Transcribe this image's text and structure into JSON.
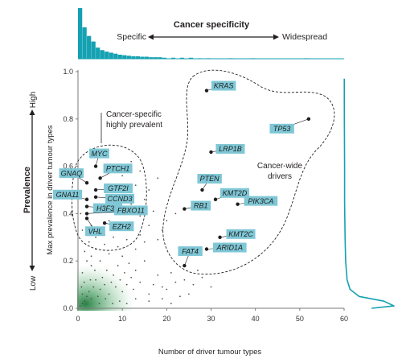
{
  "chart_data": {
    "type": "scatter",
    "xlabel": "Number of driver tumour types",
    "ylabel": "Max prevalence in driver tumour types",
    "xlim": [
      0,
      60
    ],
    "ylim": [
      0,
      1.0
    ],
    "xticks": [
      "0",
      "10",
      "20",
      "30",
      "40",
      "50",
      "60"
    ],
    "yticks": [
      "0.0",
      "0.2",
      "0.4",
      "0.6",
      "0.8",
      "1.0"
    ],
    "grid": false,
    "top_header": {
      "title": "Cancer specificity",
      "left": "Specific",
      "right": "Widespread"
    },
    "left_header": {
      "title": "Prevalence",
      "high": "High",
      "low": "Low"
    },
    "group_labels": [
      {
        "text_line1": "Cancer-specific",
        "text_line2": "highly prevalent"
      },
      {
        "text_line1": "Cancer-wide",
        "text_line2": "drivers"
      }
    ],
    "labeled_points": [
      {
        "gene": "KRAS",
        "x": 29,
        "y": 0.92
      },
      {
        "gene": "TP53",
        "x": 52,
        "y": 0.8
      },
      {
        "gene": "LRP1B",
        "x": 30,
        "y": 0.66
      },
      {
        "gene": "PTEN",
        "x": 28,
        "y": 0.5
      },
      {
        "gene": "KMT2D",
        "x": 31,
        "y": 0.46
      },
      {
        "gene": "PIK3CA",
        "x": 36,
        "y": 0.44
      },
      {
        "gene": "RB1",
        "x": 24,
        "y": 0.42
      },
      {
        "gene": "KMT2C",
        "x": 32,
        "y": 0.3
      },
      {
        "gene": "ARID1A",
        "x": 29,
        "y": 0.25
      },
      {
        "gene": "FAT4",
        "x": 24,
        "y": 0.18
      },
      {
        "gene": "MYC",
        "x": 4,
        "y": 0.6
      },
      {
        "gene": "PTCH1",
        "x": 5,
        "y": 0.55
      },
      {
        "gene": "GNAQ",
        "x": 2,
        "y": 0.53
      },
      {
        "gene": "GTF2I",
        "x": 4,
        "y": 0.5
      },
      {
        "gene": "GNA11",
        "x": 2,
        "y": 0.46
      },
      {
        "gene": "CCND3",
        "x": 4,
        "y": 0.47
      },
      {
        "gene": "H3F3A",
        "x": 2,
        "y": 0.43
      },
      {
        "gene": "FBXO11",
        "x": 2,
        "y": 0.4
      },
      {
        "gene": "EZH2",
        "x": 6,
        "y": 0.36
      },
      {
        "gene": "VHL",
        "x": 2,
        "y": 0.38
      }
    ],
    "background_points": [
      [
        0.5,
        0.01
      ],
      [
        1,
        0.02
      ],
      [
        1.5,
        0.03
      ],
      [
        2,
        0.05
      ],
      [
        1,
        0.06
      ],
      [
        0.8,
        0.09
      ],
      [
        1.4,
        0.11
      ],
      [
        2.5,
        0.07
      ],
      [
        3,
        0.04
      ],
      [
        3.5,
        0.09
      ],
      [
        4,
        0.12
      ],
      [
        4.5,
        0.05
      ],
      [
        5,
        0.08
      ],
      [
        5.5,
        0.13
      ],
      [
        6,
        0.1
      ],
      [
        6.5,
        0.16
      ],
      [
        7,
        0.06
      ],
      [
        7.5,
        0.11
      ],
      [
        8,
        0.14
      ],
      [
        8.5,
        0.09
      ],
      [
        9,
        0.18
      ],
      [
        9.5,
        0.12
      ],
      [
        10,
        0.07
      ],
      [
        10.5,
        0.15
      ],
      [
        11,
        0.1
      ],
      [
        11.5,
        0.19
      ],
      [
        12,
        0.13
      ],
      [
        12.5,
        0.08
      ],
      [
        13,
        0.16
      ],
      [
        14,
        0.11
      ],
      [
        15,
        0.2
      ],
      [
        16,
        0.06
      ],
      [
        17,
        0.1
      ],
      [
        18,
        0.14
      ],
      [
        19,
        0.09
      ],
      [
        20,
        0.08
      ],
      [
        21,
        0.15
      ],
      [
        22,
        0.11
      ],
      [
        23,
        0.05
      ],
      [
        24,
        0.12
      ],
      [
        1,
        0.15
      ],
      [
        2,
        0.2
      ],
      [
        3,
        0.18
      ],
      [
        1.5,
        0.24
      ],
      [
        2.5,
        0.28
      ],
      [
        3,
        0.22
      ],
      [
        4,
        0.25
      ],
      [
        5,
        0.2
      ],
      [
        6,
        0.27
      ],
      [
        7,
        0.23
      ],
      [
        8,
        0.3
      ],
      [
        9,
        0.26
      ],
      [
        10,
        0.22
      ],
      [
        11,
        0.29
      ],
      [
        12,
        0.33
      ],
      [
        13,
        0.25
      ],
      [
        14,
        0.31
      ],
      [
        15,
        0.28
      ],
      [
        16,
        0.35
      ],
      [
        18,
        0.29
      ],
      [
        20,
        0.37
      ],
      [
        22,
        0.4
      ],
      [
        19,
        0.33
      ],
      [
        17,
        0.41
      ],
      [
        9,
        0.35
      ],
      [
        10,
        0.4
      ],
      [
        12,
        0.44
      ],
      [
        14,
        0.39
      ],
      [
        8,
        0.44
      ],
      [
        11,
        0.48
      ],
      [
        13,
        0.52
      ],
      [
        15,
        0.46
      ],
      [
        16,
        0.5
      ],
      [
        18,
        0.55
      ],
      [
        14,
        0.58
      ],
      [
        12,
        0.62
      ],
      [
        10,
        0.56
      ],
      [
        6,
        0.31
      ],
      [
        7,
        0.37
      ],
      [
        5,
        0.33
      ],
      [
        4,
        0.3
      ],
      [
        3,
        0.35
      ],
      [
        1,
        0.33
      ],
      [
        0.6,
        0.4
      ],
      [
        2.8,
        0.12
      ],
      [
        3.8,
        0.16
      ],
      [
        4.8,
        0.02
      ],
      [
        6.2,
        0.04
      ],
      [
        7.8,
        0.02
      ],
      [
        9.4,
        0.03
      ],
      [
        11,
        0.02
      ],
      [
        13,
        0.04
      ],
      [
        16,
        0.03
      ],
      [
        19,
        0.04
      ],
      [
        21,
        0.02
      ],
      [
        25,
        0.06
      ],
      [
        26,
        0.1
      ],
      [
        27,
        0.16
      ],
      [
        28,
        0.13
      ],
      [
        30,
        0.09
      ]
    ],
    "density_x": [
      {
        "bin": 1,
        "value": 1.0
      },
      {
        "bin": 2,
        "value": 0.62
      },
      {
        "bin": 3,
        "value": 0.45
      },
      {
        "bin": 4,
        "value": 0.34
      },
      {
        "bin": 5,
        "value": 0.22
      },
      {
        "bin": 6,
        "value": 0.17
      },
      {
        "bin": 7,
        "value": 0.14
      },
      {
        "bin": 8,
        "value": 0.12
      },
      {
        "bin": 9,
        "value": 0.1
      },
      {
        "bin": 10,
        "value": 0.08
      },
      {
        "bin": 11,
        "value": 0.07
      },
      {
        "bin": 12,
        "value": 0.06
      },
      {
        "bin": 13,
        "value": 0.05
      },
      {
        "bin": 14,
        "value": 0.05
      },
      {
        "bin": 15,
        "value": 0.04
      },
      {
        "bin": 16,
        "value": 0.04
      },
      {
        "bin": 17,
        "value": 0.03
      },
      {
        "bin": 18,
        "value": 0.03
      },
      {
        "bin": 19,
        "value": 0.03
      },
      {
        "bin": 20,
        "value": 0.02
      },
      {
        "bin": 22,
        "value": 0.02
      },
      {
        "bin": 24,
        "value": 0.02
      },
      {
        "bin": 26,
        "value": 0.02
      },
      {
        "bin": 28,
        "value": 0.01
      },
      {
        "bin": 30,
        "value": 0.01
      },
      {
        "bin": 35,
        "value": 0.01
      },
      {
        "bin": 40,
        "value": 0.01
      },
      {
        "bin": 52,
        "value": 0.01
      }
    ],
    "density_y": [
      {
        "y": 0.0,
        "value": 0.55
      },
      {
        "y": 0.01,
        "value": 1.0
      },
      {
        "y": 0.03,
        "value": 0.8
      },
      {
        "y": 0.05,
        "value": 0.3
      },
      {
        "y": 0.08,
        "value": 0.12
      },
      {
        "y": 0.12,
        "value": 0.06
      },
      {
        "y": 0.2,
        "value": 0.03
      },
      {
        "y": 0.3,
        "value": 0.02
      },
      {
        "y": 0.45,
        "value": 0.01
      },
      {
        "y": 0.6,
        "value": 0.01
      },
      {
        "y": 0.8,
        "value": 0.005
      },
      {
        "y": 0.97,
        "value": 0.003
      }
    ],
    "colors": {
      "teal": "#14a1b2",
      "gene_box": "#7fc7d6",
      "density_green": "#2f8f4e",
      "point": "#1d1d1b",
      "axis": "#7a7a7a"
    }
  }
}
